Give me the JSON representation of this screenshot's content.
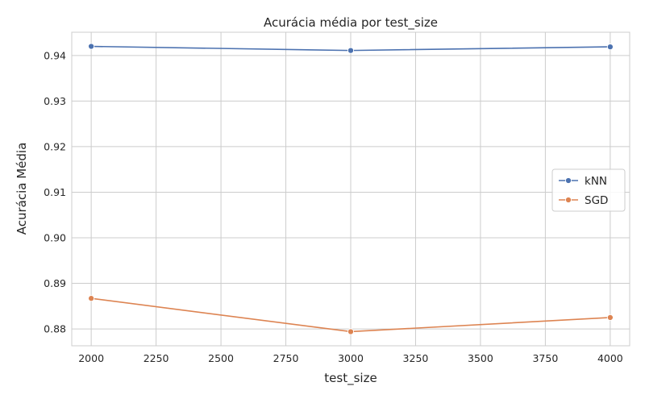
{
  "chart_data": {
    "type": "line",
    "title": "Acurácia média por test_size",
    "xlabel": "test_size",
    "ylabel": "Acurácia Média",
    "x": [
      2000,
      3000,
      4000
    ],
    "xlim": [
      1925,
      4075
    ],
    "ylim": [
      0.8763,
      0.9451
    ],
    "xticks": [
      "2000",
      "2250",
      "2500",
      "2750",
      "3000",
      "3250",
      "3500",
      "3750",
      "4000"
    ],
    "yticks": [
      "0.88",
      "0.89",
      "0.90",
      "0.91",
      "0.92",
      "0.93",
      "0.94"
    ],
    "grid": true,
    "legend_position": "center-right",
    "series": [
      {
        "name": "kNN",
        "color": "#4c72b0",
        "marker": "circle",
        "values": [
          0.942,
          0.9411,
          0.9419
        ]
      },
      {
        "name": "SGD",
        "color": "#dd8452",
        "marker": "circle",
        "values": [
          0.8867,
          0.8794,
          0.8825
        ]
      }
    ]
  }
}
